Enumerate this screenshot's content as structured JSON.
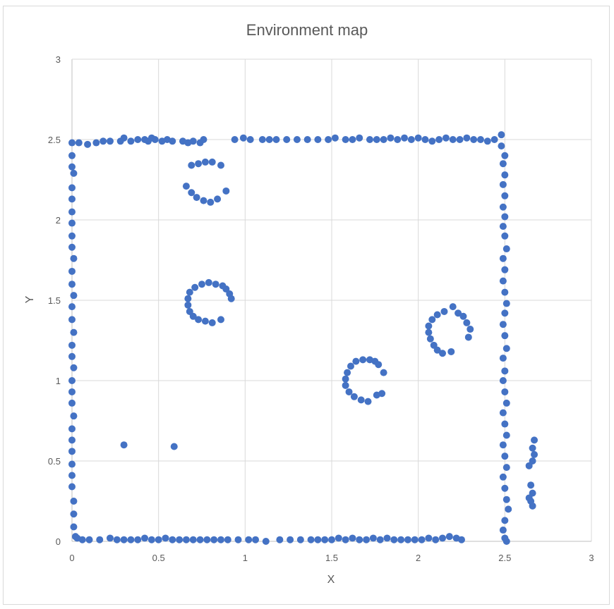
{
  "chart_data": {
    "type": "scatter",
    "title": "Environment map",
    "xlabel": "X",
    "ylabel": "Y",
    "xlim": [
      0,
      3
    ],
    "ylim": [
      0,
      3
    ],
    "xticks": [
      "0",
      "0.5",
      "1",
      "1.5",
      "2",
      "2.5",
      "3"
    ],
    "yticks": [
      "0",
      "0.5",
      "1",
      "1.5",
      "2",
      "2.5",
      "3"
    ],
    "grid": true,
    "legend": "none",
    "marker_color": "#4472c4",
    "series": [
      {
        "points": [
          [
            0.0,
            2.48
          ],
          [
            0.04,
            2.48
          ],
          [
            0.09,
            2.47
          ],
          [
            0.14,
            2.48
          ],
          [
            0.18,
            2.49
          ],
          [
            0.22,
            2.49
          ],
          [
            0.28,
            2.49
          ],
          [
            0.3,
            2.51
          ],
          [
            0.34,
            2.49
          ],
          [
            0.38,
            2.5
          ],
          [
            0.42,
            2.5
          ],
          [
            0.44,
            2.49
          ],
          [
            0.46,
            2.51
          ],
          [
            0.48,
            2.5
          ],
          [
            0.52,
            2.49
          ],
          [
            0.55,
            2.5
          ],
          [
            0.58,
            2.49
          ],
          [
            0.64,
            2.49
          ],
          [
            0.67,
            2.48
          ],
          [
            0.7,
            2.49
          ],
          [
            0.74,
            2.48
          ],
          [
            0.76,
            2.5
          ],
          [
            0.94,
            2.5
          ],
          [
            0.99,
            2.51
          ],
          [
            1.03,
            2.5
          ],
          [
            1.1,
            2.5
          ],
          [
            1.14,
            2.5
          ],
          [
            1.18,
            2.5
          ],
          [
            1.24,
            2.5
          ],
          [
            1.3,
            2.5
          ],
          [
            1.36,
            2.5
          ],
          [
            1.42,
            2.5
          ],
          [
            1.48,
            2.5
          ],
          [
            1.52,
            2.51
          ],
          [
            1.58,
            2.5
          ],
          [
            1.62,
            2.5
          ],
          [
            1.66,
            2.51
          ],
          [
            1.72,
            2.5
          ],
          [
            1.76,
            2.5
          ],
          [
            1.8,
            2.5
          ],
          [
            1.84,
            2.51
          ],
          [
            1.88,
            2.5
          ],
          [
            1.92,
            2.51
          ],
          [
            1.96,
            2.5
          ],
          [
            2.0,
            2.51
          ],
          [
            2.04,
            2.5
          ],
          [
            2.08,
            2.49
          ],
          [
            2.12,
            2.5
          ],
          [
            2.16,
            2.51
          ],
          [
            2.2,
            2.5
          ],
          [
            2.24,
            2.5
          ],
          [
            2.28,
            2.51
          ],
          [
            2.32,
            2.5
          ],
          [
            2.36,
            2.5
          ],
          [
            2.4,
            2.49
          ],
          [
            2.44,
            2.5
          ],
          [
            2.48,
            2.53
          ],
          [
            0.0,
            2.4
          ],
          [
            0.0,
            2.33
          ],
          [
            0.01,
            2.29
          ],
          [
            0.0,
            2.2
          ],
          [
            0.0,
            2.13
          ],
          [
            0.0,
            2.05
          ],
          [
            0.0,
            1.98
          ],
          [
            0.0,
            1.9
          ],
          [
            0.0,
            1.83
          ],
          [
            0.01,
            1.76
          ],
          [
            0.0,
            1.68
          ],
          [
            0.0,
            1.6
          ],
          [
            0.01,
            1.53
          ],
          [
            0.0,
            1.46
          ],
          [
            0.0,
            1.38
          ],
          [
            0.01,
            1.3
          ],
          [
            0.0,
            1.22
          ],
          [
            0.0,
            1.15
          ],
          [
            0.01,
            1.08
          ],
          [
            0.0,
            1.0
          ],
          [
            0.0,
            0.93
          ],
          [
            0.0,
            0.86
          ],
          [
            0.01,
            0.78
          ],
          [
            0.0,
            0.7
          ],
          [
            0.0,
            0.63
          ],
          [
            0.0,
            0.56
          ],
          [
            0.0,
            0.48
          ],
          [
            0.0,
            0.41
          ],
          [
            0.0,
            0.34
          ],
          [
            0.01,
            0.25
          ],
          [
            0.01,
            0.17
          ],
          [
            0.01,
            0.09
          ],
          [
            0.02,
            0.03
          ],
          [
            0.03,
            0.02
          ],
          [
            0.06,
            0.01
          ],
          [
            0.1,
            0.01
          ],
          [
            0.16,
            0.01
          ],
          [
            0.22,
            0.02
          ],
          [
            0.26,
            0.01
          ],
          [
            0.3,
            0.01
          ],
          [
            0.34,
            0.01
          ],
          [
            0.38,
            0.01
          ],
          [
            0.42,
            0.02
          ],
          [
            0.46,
            0.01
          ],
          [
            0.5,
            0.01
          ],
          [
            0.54,
            0.02
          ],
          [
            0.58,
            0.01
          ],
          [
            0.62,
            0.01
          ],
          [
            0.66,
            0.01
          ],
          [
            0.7,
            0.01
          ],
          [
            0.74,
            0.01
          ],
          [
            0.78,
            0.01
          ],
          [
            0.82,
            0.01
          ],
          [
            0.86,
            0.01
          ],
          [
            0.9,
            0.01
          ],
          [
            0.96,
            0.01
          ],
          [
            1.02,
            0.01
          ],
          [
            1.06,
            0.01
          ],
          [
            1.12,
            0.0
          ],
          [
            1.2,
            0.01
          ],
          [
            1.26,
            0.01
          ],
          [
            1.32,
            0.01
          ],
          [
            1.38,
            0.01
          ],
          [
            1.42,
            0.01
          ],
          [
            1.46,
            0.01
          ],
          [
            1.5,
            0.01
          ],
          [
            1.54,
            0.02
          ],
          [
            1.58,
            0.01
          ],
          [
            1.62,
            0.02
          ],
          [
            1.66,
            0.01
          ],
          [
            1.7,
            0.01
          ],
          [
            1.74,
            0.02
          ],
          [
            1.78,
            0.01
          ],
          [
            1.82,
            0.02
          ],
          [
            1.86,
            0.01
          ],
          [
            1.9,
            0.01
          ],
          [
            1.94,
            0.01
          ],
          [
            1.98,
            0.01
          ],
          [
            2.02,
            0.01
          ],
          [
            2.06,
            0.02
          ],
          [
            2.1,
            0.01
          ],
          [
            2.14,
            0.02
          ],
          [
            2.18,
            0.03
          ],
          [
            2.22,
            0.02
          ],
          [
            2.25,
            0.01
          ],
          [
            2.48,
            2.46
          ],
          [
            2.5,
            2.4
          ],
          [
            2.49,
            2.35
          ],
          [
            2.5,
            2.28
          ],
          [
            2.49,
            2.22
          ],
          [
            2.5,
            2.15
          ],
          [
            2.49,
            2.08
          ],
          [
            2.5,
            2.02
          ],
          [
            2.49,
            1.96
          ],
          [
            2.5,
            1.9
          ],
          [
            2.51,
            1.82
          ],
          [
            2.49,
            1.76
          ],
          [
            2.5,
            1.69
          ],
          [
            2.49,
            1.62
          ],
          [
            2.5,
            1.55
          ],
          [
            2.51,
            1.48
          ],
          [
            2.5,
            1.42
          ],
          [
            2.49,
            1.35
          ],
          [
            2.5,
            1.28
          ],
          [
            2.51,
            1.2
          ],
          [
            2.49,
            1.14
          ],
          [
            2.5,
            1.06
          ],
          [
            2.49,
            1.0
          ],
          [
            2.5,
            0.93
          ],
          [
            2.51,
            0.86
          ],
          [
            2.49,
            0.8
          ],
          [
            2.5,
            0.73
          ],
          [
            2.51,
            0.66
          ],
          [
            2.49,
            0.6
          ],
          [
            2.5,
            0.53
          ],
          [
            2.51,
            0.46
          ],
          [
            2.49,
            0.4
          ],
          [
            2.5,
            0.33
          ],
          [
            2.51,
            0.26
          ],
          [
            2.52,
            0.2
          ],
          [
            2.5,
            0.13
          ],
          [
            2.49,
            0.07
          ],
          [
            2.5,
            0.02
          ],
          [
            2.51,
            0.0
          ],
          [
            2.64,
            0.47
          ],
          [
            2.66,
            0.5
          ],
          [
            2.67,
            0.54
          ],
          [
            2.66,
            0.58
          ],
          [
            2.67,
            0.63
          ],
          [
            2.65,
            0.25
          ],
          [
            2.66,
            0.3
          ],
          [
            2.65,
            0.35
          ],
          [
            2.66,
            0.22
          ],
          [
            2.64,
            0.27
          ],
          [
            0.3,
            0.6
          ],
          [
            0.59,
            0.59
          ],
          [
            0.69,
            2.34
          ],
          [
            0.73,
            2.35
          ],
          [
            0.77,
            2.36
          ],
          [
            0.81,
            2.36
          ],
          [
            0.86,
            2.34
          ],
          [
            0.66,
            2.21
          ],
          [
            0.69,
            2.17
          ],
          [
            0.72,
            2.14
          ],
          [
            0.76,
            2.12
          ],
          [
            0.8,
            2.11
          ],
          [
            0.84,
            2.13
          ],
          [
            0.89,
            2.18
          ],
          [
            0.83,
            1.6
          ],
          [
            0.79,
            1.61
          ],
          [
            0.75,
            1.6
          ],
          [
            0.71,
            1.58
          ],
          [
            0.68,
            1.55
          ],
          [
            0.67,
            1.51
          ],
          [
            0.67,
            1.47
          ],
          [
            0.68,
            1.43
          ],
          [
            0.7,
            1.4
          ],
          [
            0.73,
            1.38
          ],
          [
            0.77,
            1.37
          ],
          [
            0.81,
            1.36
          ],
          [
            0.86,
            1.38
          ],
          [
            0.87,
            1.59
          ],
          [
            0.89,
            1.57
          ],
          [
            0.91,
            1.54
          ],
          [
            0.92,
            1.51
          ],
          [
            1.68,
            1.13
          ],
          [
            1.64,
            1.12
          ],
          [
            1.61,
            1.09
          ],
          [
            1.59,
            1.05
          ],
          [
            1.58,
            1.01
          ],
          [
            1.58,
            0.97
          ],
          [
            1.6,
            0.93
          ],
          [
            1.63,
            0.9
          ],
          [
            1.67,
            0.88
          ],
          [
            1.71,
            0.87
          ],
          [
            1.76,
            0.91
          ],
          [
            1.79,
            0.92
          ],
          [
            1.72,
            1.13
          ],
          [
            1.75,
            1.12
          ],
          [
            1.77,
            1.1
          ],
          [
            1.8,
            1.05
          ],
          [
            2.15,
            1.43
          ],
          [
            2.11,
            1.41
          ],
          [
            2.08,
            1.38
          ],
          [
            2.06,
            1.34
          ],
          [
            2.06,
            1.3
          ],
          [
            2.07,
            1.26
          ],
          [
            2.09,
            1.22
          ],
          [
            2.11,
            1.19
          ],
          [
            2.14,
            1.17
          ],
          [
            2.19,
            1.18
          ],
          [
            2.2,
            1.46
          ],
          [
            2.23,
            1.42
          ],
          [
            2.26,
            1.4
          ],
          [
            2.28,
            1.36
          ],
          [
            2.3,
            1.32
          ],
          [
            2.29,
            1.27
          ]
        ]
      }
    ]
  }
}
